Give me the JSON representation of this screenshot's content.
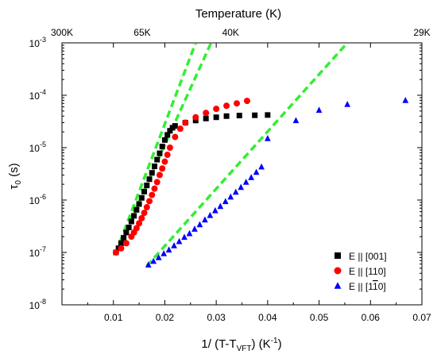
{
  "chart_data": {
    "type": "scatter",
    "x_label_prefix": "1/ (T-T",
    "x_label_subscript": "VFT",
    "x_label_suffix": ") (K",
    "x_label_superscript": "-1",
    "x_label_end": ")",
    "y_label_main": "τ",
    "y_label_subscript": "0",
    "y_label_suffix": " (s)",
    "top_axis_label": "Temperature (K)",
    "xlim": [
      0.0,
      0.07
    ],
    "ylim_log10": [
      -8,
      -3
    ],
    "y_scale": "log",
    "x_ticks": [
      {
        "value": 0.01,
        "label": "0.01"
      },
      {
        "value": 0.02,
        "label": "0.02"
      },
      {
        "value": 0.03,
        "label": "0.03"
      },
      {
        "value": 0.04,
        "label": "0.04"
      },
      {
        "value": 0.05,
        "label": "0.05"
      },
      {
        "value": 0.06,
        "label": "0.06"
      },
      {
        "value": 0.07,
        "label": "0.07"
      }
    ],
    "y_ticks": [
      {
        "exp": -8,
        "base": "10",
        "sup": "-8"
      },
      {
        "exp": -7,
        "base": "10",
        "sup": "-7"
      },
      {
        "exp": -6,
        "base": "10",
        "sup": "-6"
      },
      {
        "exp": -5,
        "base": "10",
        "sup": "-5"
      },
      {
        "exp": -4,
        "base": "10",
        "sup": "-4"
      },
      {
        "exp": -3,
        "base": "10",
        "sup": "-3"
      }
    ],
    "top_ticks": [
      {
        "x": 0.0,
        "label": "300K"
      },
      {
        "x": 0.0156,
        "label": "65K"
      },
      {
        "x": 0.0328,
        "label": "40K"
      },
      {
        "x": 0.07,
        "label": "29K"
      }
    ],
    "legend_position": "bottom-right",
    "series": [
      {
        "name": "E || [001]",
        "legend_main": "E || [001]",
        "legend_bar": "",
        "legend_end": "",
        "marker": "square",
        "color": "#000000",
        "points": [
          [
            0.0105,
            1e-07
          ],
          [
            0.011,
            1.2e-07
          ],
          [
            0.0115,
            1.5e-07
          ],
          [
            0.012,
            1.9e-07
          ],
          [
            0.0125,
            2.4e-07
          ],
          [
            0.013,
            3e-07
          ],
          [
            0.0135,
            3.9e-07
          ],
          [
            0.014,
            5e-07
          ],
          [
            0.0145,
            6.5e-07
          ],
          [
            0.015,
            8.4e-07
          ],
          [
            0.0155,
            1.1e-06
          ],
          [
            0.016,
            1.45e-06
          ],
          [
            0.0165,
            1.9e-06
          ],
          [
            0.017,
            2.5e-06
          ],
          [
            0.0175,
            3.3e-06
          ],
          [
            0.018,
            4.4e-06
          ],
          [
            0.0185,
            5.9e-06
          ],
          [
            0.019,
            7.8e-06
          ],
          [
            0.0195,
            1.05e-05
          ],
          [
            0.02,
            1.4e-05
          ],
          [
            0.0205,
            1.75e-05
          ],
          [
            0.021,
            2.1e-05
          ],
          [
            0.0215,
            2.4e-05
          ],
          [
            0.022,
            2.6e-05
          ],
          [
            0.024,
            3e-05
          ],
          [
            0.026,
            3.3e-05
          ],
          [
            0.028,
            3.6e-05
          ],
          [
            0.03,
            3.8e-05
          ],
          [
            0.032,
            4e-05
          ],
          [
            0.0345,
            4.1e-05
          ],
          [
            0.0375,
            4.15e-05
          ],
          [
            0.04,
            4.2e-05
          ]
        ]
      },
      {
        "name": "E || [110]",
        "legend_main": "E || [110]",
        "legend_bar": "",
        "legend_end": "",
        "marker": "circle",
        "color": "#ff0000",
        "points": [
          [
            0.0105,
            1e-07
          ],
          [
            0.0115,
            1.2e-07
          ],
          [
            0.0125,
            1.5e-07
          ],
          [
            0.0135,
            2e-07
          ],
          [
            0.014,
            2.4e-07
          ],
          [
            0.0145,
            2.9e-07
          ],
          [
            0.015,
            3.6e-07
          ],
          [
            0.0155,
            4.5e-07
          ],
          [
            0.016,
            5.7e-07
          ],
          [
            0.0165,
            7.3e-07
          ],
          [
            0.017,
            9.5e-07
          ],
          [
            0.0175,
            1.25e-06
          ],
          [
            0.018,
            1.65e-06
          ],
          [
            0.0185,
            2.2e-06
          ],
          [
            0.019,
            3e-06
          ],
          [
            0.0195,
            4e-06
          ],
          [
            0.02,
            5.4e-06
          ],
          [
            0.0205,
            7.3e-06
          ],
          [
            0.021,
            1e-05
          ],
          [
            0.022,
            1.6e-05
          ],
          [
            0.023,
            2.3e-05
          ],
          [
            0.024,
            3e-05
          ],
          [
            0.026,
            3.8e-05
          ],
          [
            0.028,
            4.6e-05
          ],
          [
            0.03,
            5.5e-05
          ],
          [
            0.032,
            6.3e-05
          ],
          [
            0.034,
            7e-05
          ],
          [
            0.036,
            7.8e-05
          ]
        ]
      },
      {
        "name": "E || [1-10]",
        "legend_main": "E || [1",
        "legend_bar": "1",
        "legend_end": "0]",
        "marker": "triangle",
        "color": "#0000ff",
        "points": [
          [
            0.0168,
            5.8e-08
          ],
          [
            0.0178,
            6.8e-08
          ],
          [
            0.0188,
            8e-08
          ],
          [
            0.0198,
            9.5e-08
          ],
          [
            0.0208,
            1.12e-07
          ],
          [
            0.0218,
            1.35e-07
          ],
          [
            0.0228,
            1.62e-07
          ],
          [
            0.0238,
            1.95e-07
          ],
          [
            0.0248,
            2.3e-07
          ],
          [
            0.0258,
            2.8e-07
          ],
          [
            0.0268,
            3.4e-07
          ],
          [
            0.0278,
            4.2e-07
          ],
          [
            0.0288,
            5.1e-07
          ],
          [
            0.0298,
            6.3e-07
          ],
          [
            0.0308,
            7.6e-07
          ],
          [
            0.0318,
            9.4e-07
          ],
          [
            0.0328,
            1.15e-06
          ],
          [
            0.0338,
            1.42e-06
          ],
          [
            0.0348,
            1.75e-06
          ],
          [
            0.0358,
            2.2e-06
          ],
          [
            0.0368,
            2.7e-06
          ],
          [
            0.0378,
            3.4e-06
          ],
          [
            0.0388,
            4.3e-06
          ],
          [
            0.04,
            1.5e-05
          ],
          [
            0.0455,
            3.3e-05
          ],
          [
            0.05,
            5.2e-05
          ],
          [
            0.0555,
            6.7e-05
          ],
          [
            0.0668,
            8e-05
          ]
        ]
      }
    ],
    "fit_lines": [
      {
        "color": "#33ee33",
        "points": [
          [
            0.0105,
            1e-07
          ],
          [
            0.026,
            0.001
          ]
        ]
      },
      {
        "color": "#33ee33",
        "points": [
          [
            0.0105,
            1e-07
          ],
          [
            0.029,
            0.001
          ]
        ]
      },
      {
        "color": "#33ee33",
        "points": [
          [
            0.0165,
            5.5e-08
          ],
          [
            0.0555,
            0.001
          ]
        ]
      }
    ]
  }
}
